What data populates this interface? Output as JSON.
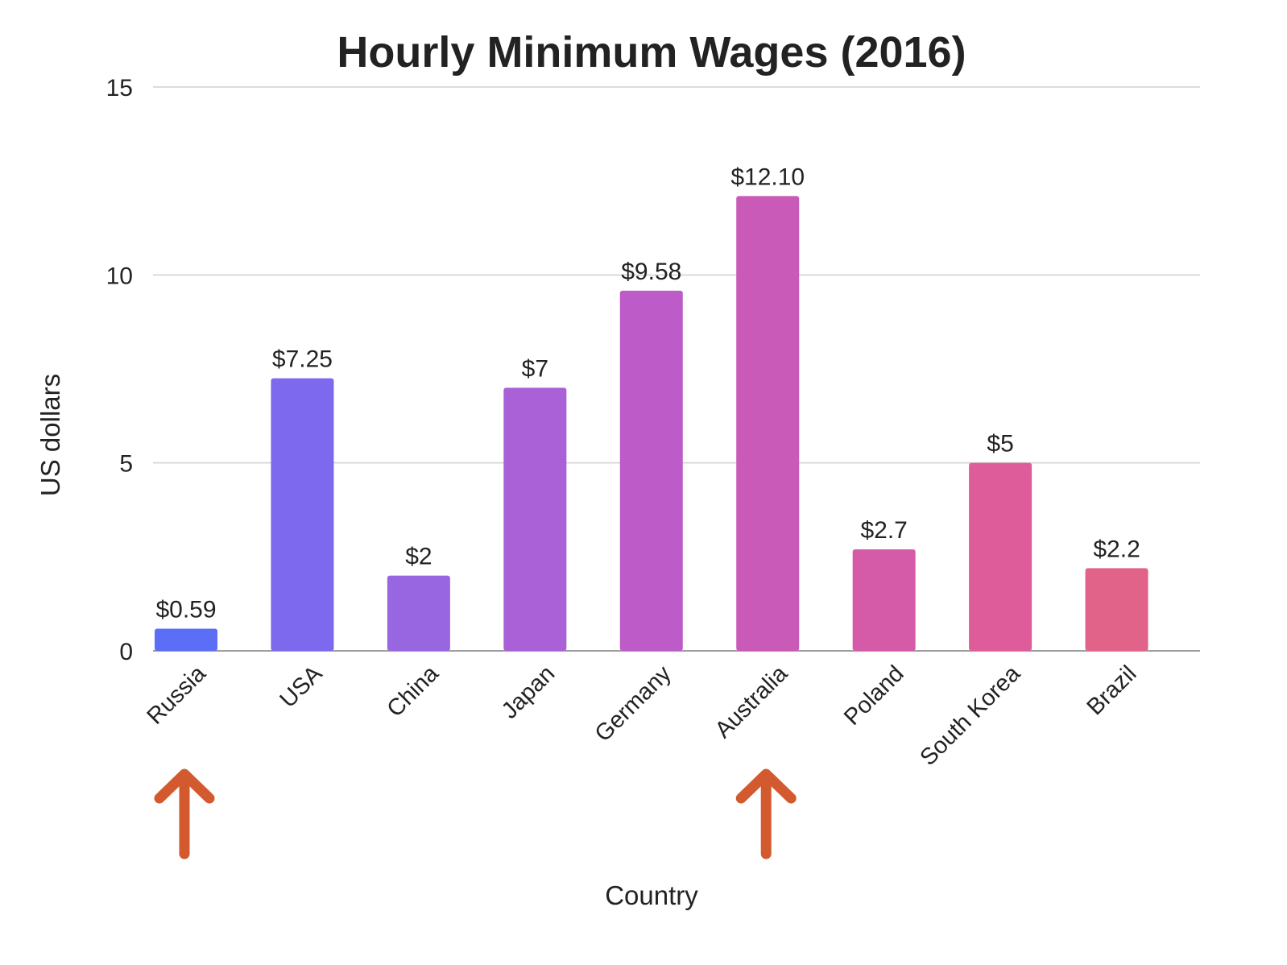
{
  "chart_data": {
    "type": "bar",
    "title": "Hourly Minimum Wages (2016)",
    "xlabel": "Country",
    "ylabel": "US dollars",
    "ylim": [
      0,
      15
    ],
    "yticks": [
      "0",
      "5",
      "10",
      "15"
    ],
    "categories": [
      "Russia",
      "USA",
      "China",
      "Japan",
      "Germany",
      "Australia",
      "Poland",
      "South Korea",
      "Brazil"
    ],
    "values": [
      0.59,
      7.25,
      2,
      7,
      9.58,
      12.1,
      2.7,
      5,
      2.2
    ],
    "data_labels": [
      "$0.59",
      "$7.25",
      "$2",
      "$7",
      "$9.58",
      "$12.10",
      "$2.7",
      "$5",
      "$2.2"
    ],
    "colors": [
      "#5b6ef5",
      "#7c69ee",
      "#9966e2",
      "#aa60d6",
      "#bd5bc8",
      "#c95ab8",
      "#d55aa8",
      "#de5c9a",
      "#e2638a"
    ],
    "annotation_color": "#d35a2e",
    "highlighted_categories": [
      "Russia",
      "Australia"
    ],
    "grid": true
  }
}
